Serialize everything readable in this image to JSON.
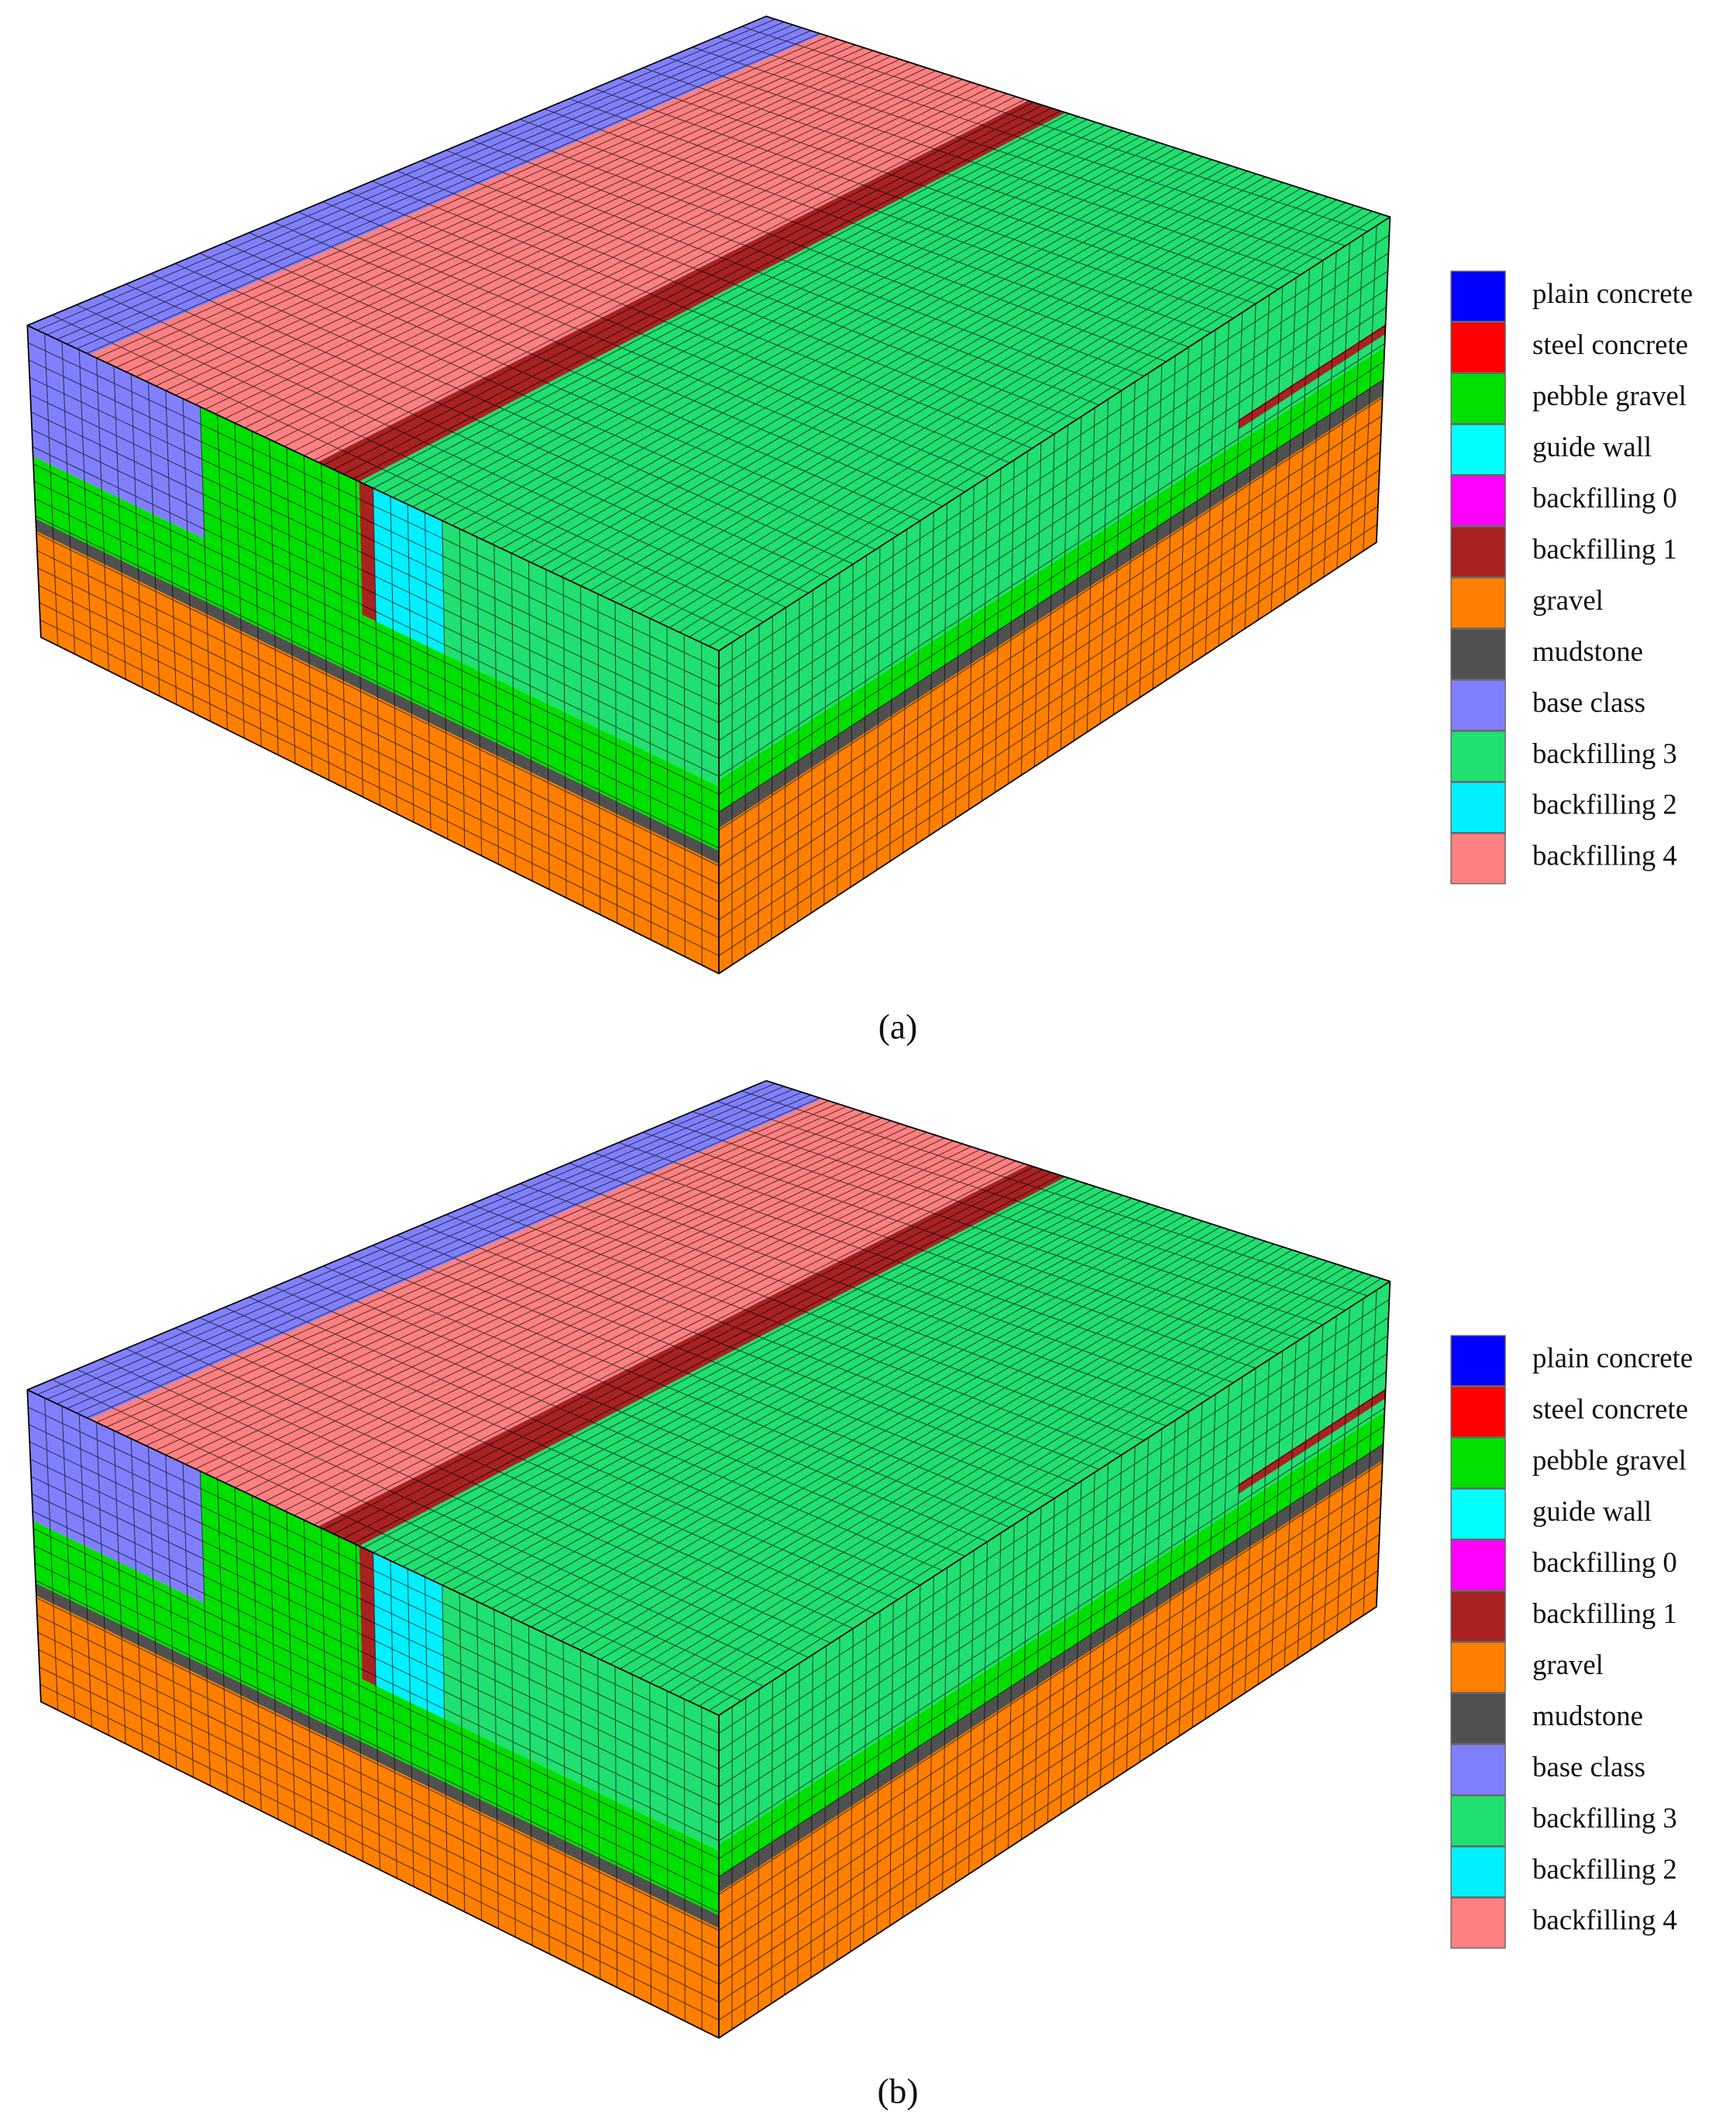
{
  "panels": [
    {
      "caption": "(a)",
      "legend": [
        {
          "label": "plain concrete",
          "color": "#0000ff"
        },
        {
          "label": "steel concrete",
          "color": "#ff0000"
        },
        {
          "label": "pebble gravel",
          "color": "#00e000"
        },
        {
          "label": "guide wall",
          "color": "#00ffff"
        },
        {
          "label": "backfilling 0",
          "color": "#ff00ff"
        },
        {
          "label": "backfilling 1",
          "color": "#a82222"
        },
        {
          "label": "gravel",
          "color": "#ff8000"
        },
        {
          "label": "mudstone",
          "color": "#505050"
        },
        {
          "label": "base class",
          "color": "#8080ff"
        },
        {
          "label": "backfilling 3",
          "color": "#20e070"
        },
        {
          "label": "backfilling 2",
          "color": "#00f0ff"
        },
        {
          "label": "backfilling 4",
          "color": "#ff8080"
        }
      ]
    },
    {
      "caption": "(b)",
      "legend": [
        {
          "label": "plain concrete",
          "color": "#0000ff"
        },
        {
          "label": "steel concrete",
          "color": "#ff0000"
        },
        {
          "label": "pebble gravel",
          "color": "#00e000"
        },
        {
          "label": "guide wall",
          "color": "#00ffff"
        },
        {
          "label": "backfilling 0",
          "color": "#ff00ff"
        },
        {
          "label": "backfilling 1",
          "color": "#a82222"
        },
        {
          "label": "gravel",
          "color": "#ff8000"
        },
        {
          "label": "mudstone",
          "color": "#505050"
        },
        {
          "label": "base class",
          "color": "#8080ff"
        },
        {
          "label": "backfilling 3",
          "color": "#20e070"
        },
        {
          "label": "backfilling 2",
          "color": "#00f0ff"
        },
        {
          "label": "backfilling 4",
          "color": "#ff8080"
        }
      ]
    }
  ]
}
